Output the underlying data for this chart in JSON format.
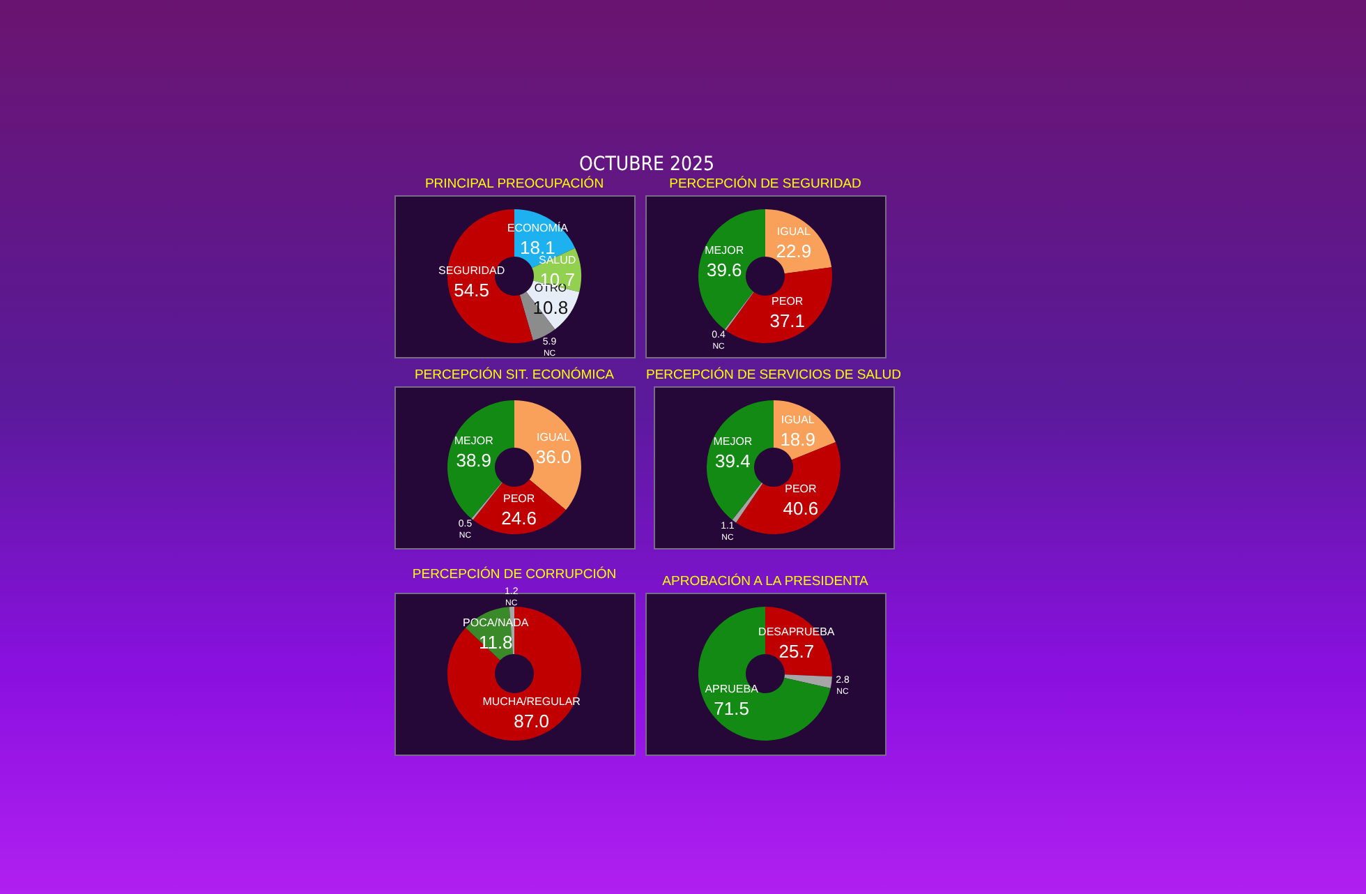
{
  "chart_data": [
    {
      "type": "donut",
      "title": "PRINCIPAL PREOCUPACIÓN",
      "subtitle": "OCTUBRE 2025",
      "categories": [
        "ECONOMÍA",
        "SALUD",
        "OTRO",
        "NC",
        "SEGURIDAD"
      ],
      "values": [
        18.1,
        10.7,
        10.8,
        5.9,
        54.5
      ],
      "value_labels": [
        "18.1",
        "10.7",
        "10.8",
        "5.9",
        "54.5"
      ],
      "colors": [
        "#1eb1ef",
        "#92d050",
        "#e6edf7",
        "#8c8c8c",
        "#c00000"
      ]
    },
    {
      "type": "donut",
      "title": "PERCEPCIÓN DE SEGURIDAD",
      "categories": [
        "IGUAL",
        "PEOR",
        "NC",
        "MEJOR"
      ],
      "values": [
        22.9,
        37.1,
        0.4,
        39.6
      ],
      "value_labels": [
        "22.9",
        "37.1",
        "0.4",
        "39.6"
      ],
      "colors": [
        "#f9a05a",
        "#c00000",
        "#a6a6a6",
        "#138a13"
      ]
    },
    {
      "type": "donut",
      "title": "PERCEPCIÓN SIT. ECONÓMICA",
      "categories": [
        "IGUAL",
        "PEOR",
        "NC",
        "MEJOR"
      ],
      "values": [
        36.0,
        24.6,
        0.5,
        38.9
      ],
      "value_labels": [
        "36.0",
        "24.6",
        "0.5",
        "38.9"
      ],
      "colors": [
        "#f9a05a",
        "#c00000",
        "#a6a6a6",
        "#138a13"
      ]
    },
    {
      "type": "donut",
      "title": "PERCEPCIÓN DE SERVICIOS DE SALUD",
      "categories": [
        "IGUAL",
        "PEOR",
        "NC",
        "MEJOR"
      ],
      "values": [
        18.9,
        40.6,
        1.1,
        39.4
      ],
      "value_labels": [
        "18.9",
        "40.6",
        "1.1",
        "39.4"
      ],
      "colors": [
        "#f9a05a",
        "#c00000",
        "#a6a6a6",
        "#138a13"
      ]
    },
    {
      "type": "donut",
      "title": "PERCEPCIÓN DE CORRUPCIÓN",
      "categories": [
        "MUCHA/REGULAR",
        "POCA/NADA",
        "NC"
      ],
      "values": [
        87.0,
        11.8,
        1.2
      ],
      "value_labels": [
        "87.0",
        "11.8",
        "1.2"
      ],
      "colors": [
        "#c00000",
        "#3a8a2a",
        "#a6a6a6"
      ]
    },
    {
      "type": "donut",
      "title": "APROBACIÓN A LA PRESIDENTA",
      "categories": [
        "DESAPRUEBA",
        "NC",
        "APRUEBA"
      ],
      "values": [
        25.7,
        2.8,
        71.5
      ],
      "value_labels": [
        "25.7",
        "2.8",
        "71.5"
      ],
      "colors": [
        "#c00000",
        "#a6a6a6",
        "#138a13"
      ]
    }
  ]
}
